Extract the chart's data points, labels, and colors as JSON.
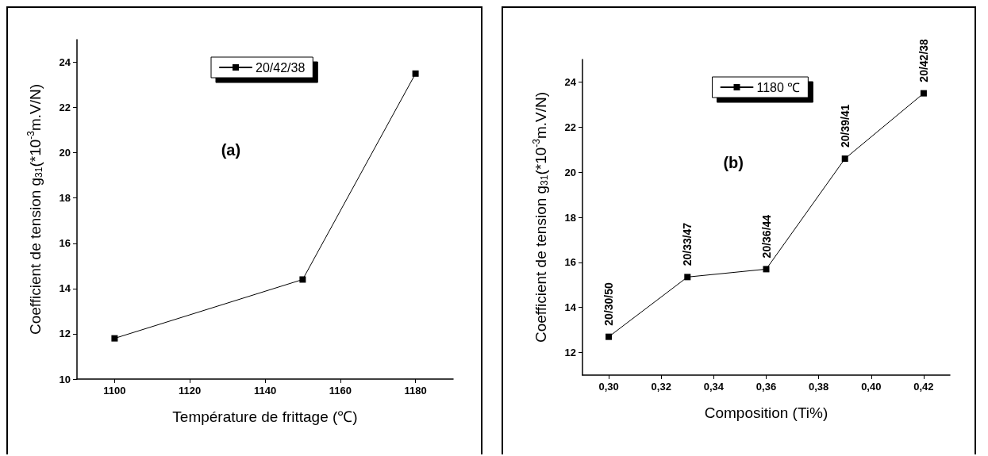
{
  "chart_data": [
    {
      "type": "line",
      "xlabel": "Température de frittage (℃)",
      "ylabel": "Coefficient de tension g$_{31}$(*10$^{-3}$m.V/N)",
      "x": [
        1100,
        1150,
        1180
      ],
      "series": [
        {
          "name": "20/42/38",
          "color": "#000000",
          "values": [
            11.8,
            14.4,
            23.5
          ]
        }
      ],
      "xlim": [
        1090,
        1190
      ],
      "xticks": [
        1100,
        1120,
        1140,
        1160,
        1180
      ],
      "ylim": [
        10,
        25
      ],
      "yticks": [
        10,
        12,
        14,
        16,
        18,
        20,
        22,
        24
      ],
      "annotations": [
        "(a)"
      ],
      "legend": "top",
      "marker": "square",
      "line_style": "solid",
      "grid": false
    },
    {
      "type": "line",
      "xlabel": "Composition (Ti%)",
      "ylabel": "Coefficient de tension g$_{31}$(*10$^{-3}$m.V/N)",
      "x": [
        0.3,
        0.33,
        0.36,
        0.39,
        0.42
      ],
      "series": [
        {
          "name": "1180 ℃",
          "color": "#000000",
          "values": [
            12.7,
            15.35,
            15.7,
            20.6,
            23.5
          ]
        }
      ],
      "xlim": [
        0.29,
        0.43
      ],
      "xticks": [
        {
          "value": 0.3,
          "label": "0,30"
        },
        {
          "value": 0.32,
          "label": "0,32"
        },
        {
          "value": 0.34,
          "label": "0,34"
        },
        {
          "value": 0.36,
          "label": "0,36"
        },
        {
          "value": 0.38,
          "label": "0,38"
        },
        {
          "value": 0.4,
          "label": "0,40"
        },
        {
          "value": 0.42,
          "label": "0,42"
        }
      ],
      "ylim": [
        11,
        25
      ],
      "yticks": [
        12,
        14,
        16,
        18,
        20,
        22,
        24
      ],
      "annotations": [
        "(b)",
        {
          "text": "20/30/50",
          "x": 0.3,
          "y": 12.7
        },
        {
          "text": "20/33/47",
          "x": 0.33,
          "y": 15.35
        },
        {
          "text": "20/36/44",
          "x": 0.36,
          "y": 15.7
        },
        {
          "text": "20/39/41",
          "x": 0.39,
          "y": 20.6
        },
        {
          "text": "20/42/38",
          "x": 0.42,
          "y": 23.5
        }
      ],
      "legend": "top",
      "marker": "square",
      "line_style": "solid",
      "grid": false
    }
  ]
}
